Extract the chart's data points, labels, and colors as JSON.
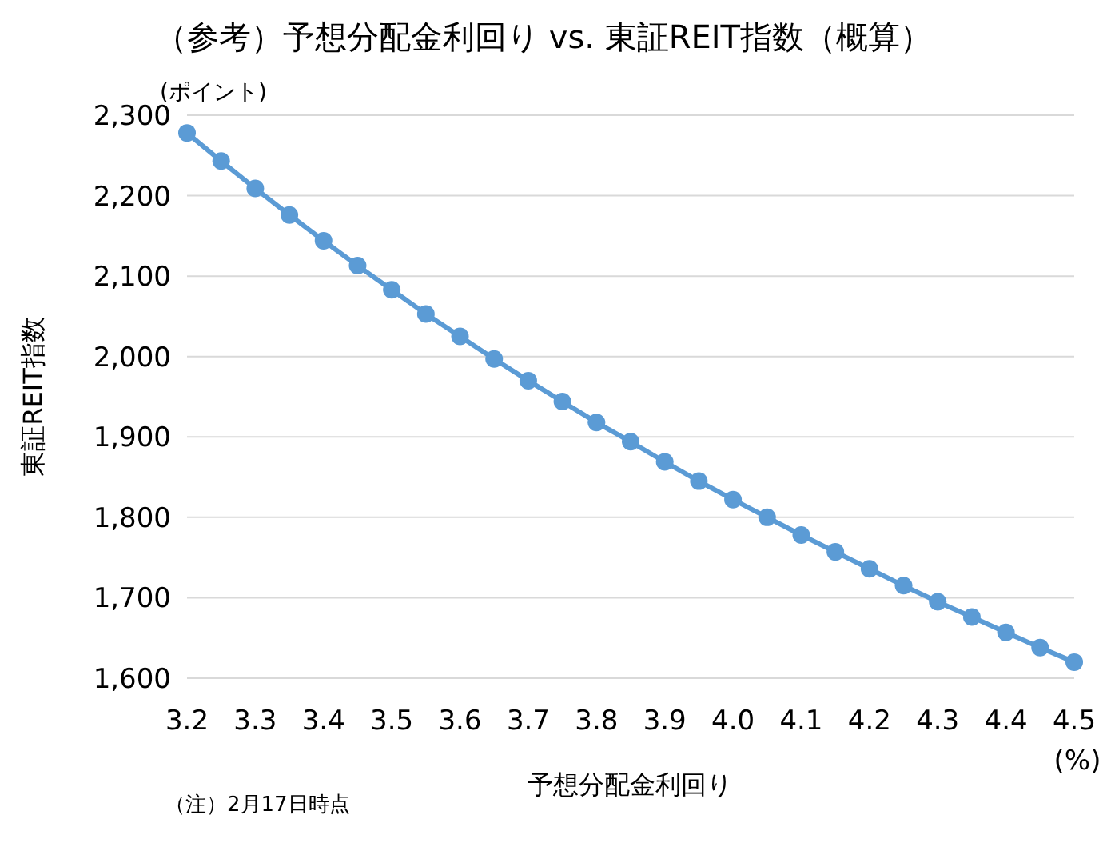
{
  "chart_data": {
    "type": "line",
    "title": "（参考）予想分配金利回り vs. 東証REIT指数（概算）",
    "xlabel": "予想分配金利回り",
    "ylabel": "東証REIT指数",
    "annotations": [
      "(ポイント)",
      "(%)",
      "（注）2月17日時点"
    ],
    "x": [
      3.2,
      3.25,
      3.3,
      3.35,
      3.4,
      3.45,
      3.5,
      3.55,
      3.6,
      3.65,
      3.7,
      3.75,
      3.8,
      3.85,
      3.9,
      3.95,
      4.0,
      4.05,
      4.1,
      4.15,
      4.2,
      4.25,
      4.3,
      4.35,
      4.4,
      4.45,
      4.5
    ],
    "series": [
      {
        "color": "#5b9bd5",
        "values": [
          2278,
          2243,
          2209,
          2176,
          2144,
          2113,
          2083,
          2053,
          2025,
          1997,
          1970,
          1944,
          1918,
          1894,
          1869,
          1845,
          1822,
          1800,
          1778,
          1757,
          1736,
          1715,
          1695,
          1676,
          1657,
          1638,
          1620
        ]
      }
    ],
    "xlim": [
      3.2,
      4.5
    ],
    "xticks": [
      3.2,
      3.3,
      3.4,
      3.5,
      3.6,
      3.7,
      3.8,
      3.9,
      {
        "value": 4.0,
        "label": "4.0"
      },
      4.1,
      4.2,
      4.3,
      4.4,
      4.5
    ],
    "ylim": [
      1600,
      2300
    ],
    "yticks": [
      {
        "value": 1600,
        "label": "1,600"
      },
      {
        "value": 1700,
        "label": "1,700"
      },
      {
        "value": 1800,
        "label": "1,800"
      },
      {
        "value": 1900,
        "label": "1,900"
      },
      {
        "value": 2000,
        "label": "2,000"
      },
      {
        "value": 2100,
        "label": "2,100"
      },
      {
        "value": 2200,
        "label": "2,200"
      },
      {
        "value": 2300,
        "label": "2,300"
      }
    ],
    "grid": "y",
    "marker": "circle",
    "line_style": "solid"
  }
}
